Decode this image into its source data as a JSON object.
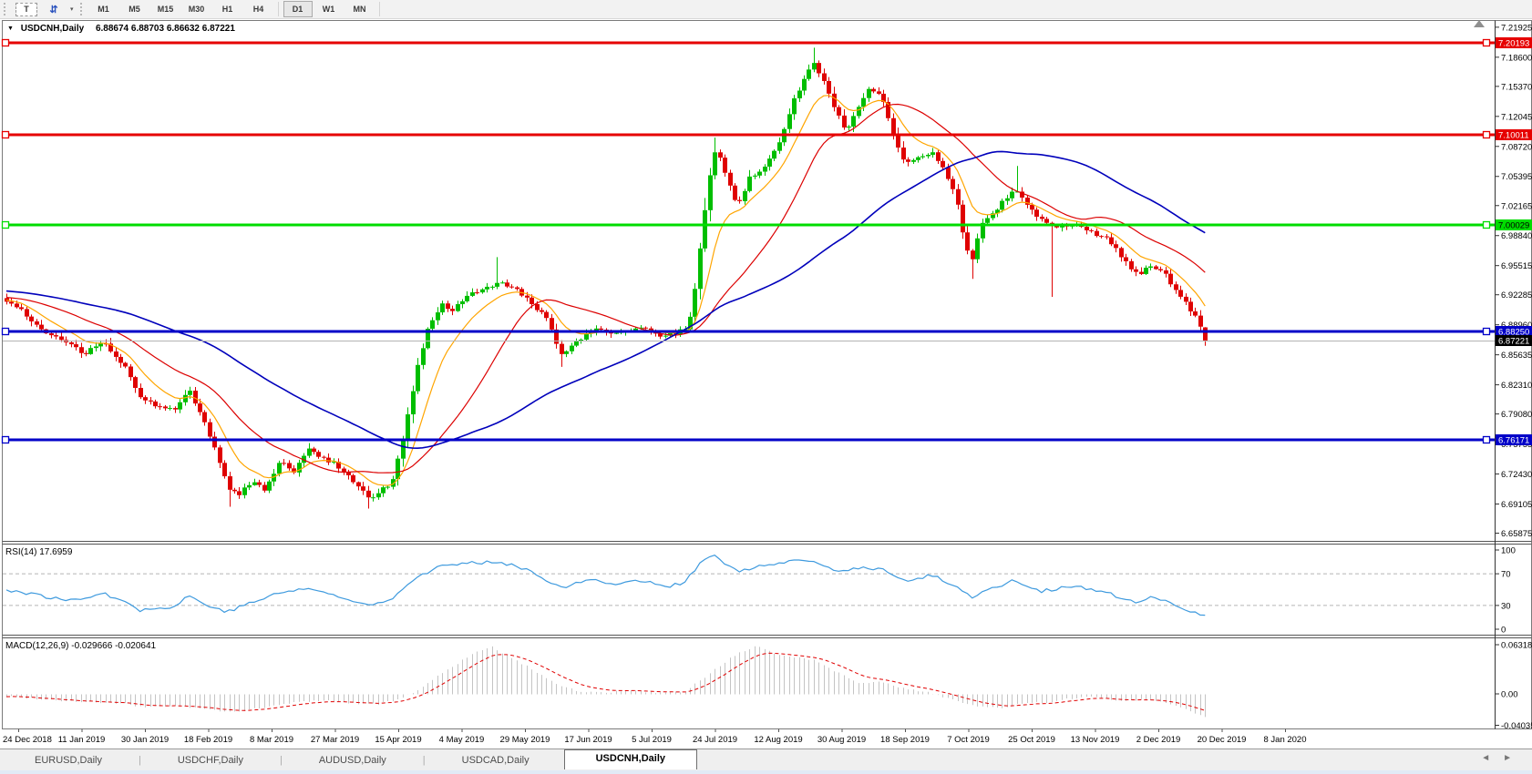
{
  "toolbar": {
    "text_tool_label": "T",
    "arrows_icon_glyph": "⇵",
    "dropdown_caret": "▾",
    "timeframes": [
      "M1",
      "M5",
      "M15",
      "M30",
      "H1",
      "H4",
      "D1",
      "W1",
      "MN"
    ],
    "active_timeframe": "D1"
  },
  "chart_title": {
    "dropdown_glyph": "▼",
    "symbol": "USDCNH,Daily",
    "ohlc": "6.88674 6.88703 6.86632 6.87221"
  },
  "indicator_labels": {
    "rsi": "RSI(14) 17.6959",
    "macd": "MACD(12,26,9) -0.029666 -0.020641"
  },
  "tabs": {
    "items": [
      "EURUSD,Daily",
      "USDCHF,Daily",
      "AUDUSD,Daily",
      "USDCAD,Daily",
      "USDCNH,Daily"
    ],
    "active": "USDCNH,Daily",
    "scroll_left": "◄",
    "scroll_right": "►"
  },
  "chart_data": {
    "type": "candlestick",
    "symbol": "USDCNH",
    "timeframe": "Daily",
    "num_candles": 243,
    "colors": {
      "bull": "#00be00",
      "bear": "#df0202",
      "ma_fast": "#ffa500",
      "ma_medium": "#dc0000",
      "ma_slow": "#0000bb",
      "rsi_line": "#3e9ade",
      "macd_hist": "#c4c4c4",
      "macd_signal": "#e00000",
      "current_price_line": "#b4b4b4"
    },
    "price_axis": {
      "ylim": [
        6.6502,
        7.2272
      ],
      "ticks": [
        "7.21925",
        "7.18600",
        "7.15370",
        "7.12045",
        "7.08720",
        "7.05395",
        "7.02165",
        "6.98840",
        "6.95515",
        "6.92285",
        "6.88960",
        "6.85635",
        "6.82310",
        "6.79080",
        "6.75755",
        "6.72430",
        "6.69105",
        "6.65875"
      ]
    },
    "x_labels": [
      "24 Dec 2018",
      "11 Jan 2019",
      "30 Jan 2019",
      "18 Feb 2019",
      "8 Mar 2019",
      "27 Mar 2019",
      "15 Apr 2019",
      "4 May 2019",
      "29 May 2019",
      "17 Jun 2019",
      "5 Jul 2019",
      "24 Jul 2019",
      "12 Aug 2019",
      "30 Aug 2019",
      "18 Sep 2019",
      "7 Oct 2019",
      "25 Oct 2019",
      "13 Nov 2019",
      "2 Dec 2019",
      "20 Dec 2019",
      "8 Jan 2020"
    ],
    "horizontal_lines": [
      {
        "price": 7.20193,
        "label": "7.20193",
        "color": "#e60000",
        "text_color": "#ffffff"
      },
      {
        "price": 7.10011,
        "label": "7.10011",
        "color": "#e60000",
        "text_color": "#ffffff"
      },
      {
        "price": 7.00029,
        "label": "7.00029",
        "color": "#00dc00",
        "text_color": "#000000"
      },
      {
        "price": 6.8825,
        "label": "6.88250",
        "color": "#0000c8",
        "text_color": "#ffffff"
      },
      {
        "price": 6.76171,
        "label": "6.76171",
        "color": "#0000c8",
        "text_color": "#ffffff"
      }
    ],
    "current_price": {
      "value": 6.87221,
      "label": "6.87221",
      "bg": "#000000",
      "text_color": "#ffffff"
    },
    "last_candle": {
      "o": 6.88674,
      "h": 6.88703,
      "l": 6.86632,
      "c": 6.87221
    },
    "price_keyframes": [
      [
        0,
        6.916
      ],
      [
        0.012,
        6.905
      ],
      [
        0.03,
        6.885
      ],
      [
        0.05,
        6.868
      ],
      [
        0.065,
        6.858
      ],
      [
        0.08,
        6.87
      ],
      [
        0.1,
        6.842
      ],
      [
        0.112,
        6.81
      ],
      [
        0.125,
        6.801
      ],
      [
        0.14,
        6.797
      ],
      [
        0.152,
        6.818
      ],
      [
        0.163,
        6.788
      ],
      [
        0.175,
        6.748
      ],
      [
        0.185,
        6.706
      ],
      [
        0.195,
        6.703
      ],
      [
        0.205,
        6.717
      ],
      [
        0.215,
        6.708
      ],
      [
        0.228,
        6.737
      ],
      [
        0.24,
        6.727
      ],
      [
        0.253,
        6.752
      ],
      [
        0.263,
        6.742
      ],
      [
        0.278,
        6.732
      ],
      [
        0.292,
        6.713
      ],
      [
        0.303,
        6.695
      ],
      [
        0.312,
        6.705
      ],
      [
        0.322,
        6.717
      ],
      [
        0.332,
        6.772
      ],
      [
        0.342,
        6.838
      ],
      [
        0.352,
        6.888
      ],
      [
        0.363,
        6.913
      ],
      [
        0.372,
        6.905
      ],
      [
        0.385,
        6.922
      ],
      [
        0.4,
        6.93
      ],
      [
        0.41,
        6.938
      ],
      [
        0.422,
        6.931
      ],
      [
        0.438,
        6.914
      ],
      [
        0.452,
        6.893
      ],
      [
        0.462,
        6.857
      ],
      [
        0.472,
        6.868
      ],
      [
        0.49,
        6.886
      ],
      [
        0.51,
        6.879
      ],
      [
        0.53,
        6.885
      ],
      [
        0.55,
        6.877
      ],
      [
        0.565,
        6.884
      ],
      [
        0.572,
        6.902
      ],
      [
        0.578,
        6.968
      ],
      [
        0.585,
        7.042
      ],
      [
        0.592,
        7.088
      ],
      [
        0.6,
        7.054
      ],
      [
        0.61,
        7.022
      ],
      [
        0.62,
        7.052
      ],
      [
        0.632,
        7.062
      ],
      [
        0.645,
        7.095
      ],
      [
        0.655,
        7.132
      ],
      [
        0.665,
        7.162
      ],
      [
        0.672,
        7.182
      ],
      [
        0.682,
        7.158
      ],
      [
        0.692,
        7.126
      ],
      [
        0.7,
        7.102
      ],
      [
        0.712,
        7.132
      ],
      [
        0.72,
        7.152
      ],
      [
        0.73,
        7.143
      ],
      [
        0.74,
        7.102
      ],
      [
        0.75,
        7.066
      ],
      [
        0.762,
        7.077
      ],
      [
        0.772,
        7.082
      ],
      [
        0.782,
        7.06
      ],
      [
        0.792,
        7.032
      ],
      [
        0.8,
        6.975
      ],
      [
        0.806,
        6.96
      ],
      [
        0.812,
        6.998
      ],
      [
        0.822,
        7.01
      ],
      [
        0.832,
        7.028
      ],
      [
        0.842,
        7.038
      ],
      [
        0.852,
        7.022
      ],
      [
        0.862,
        7.008
      ],
      [
        0.875,
        6.998
      ],
      [
        0.89,
        7.001
      ],
      [
        0.905,
        6.993
      ],
      [
        0.917,
        6.985
      ],
      [
        0.93,
        6.966
      ],
      [
        0.943,
        6.945
      ],
      [
        0.955,
        6.956
      ],
      [
        0.965,
        6.948
      ],
      [
        0.975,
        6.929
      ],
      [
        0.985,
        6.911
      ],
      [
        0.993,
        6.898
      ],
      [
        1.0,
        6.87221
      ]
    ],
    "wick_events": [
      {
        "f": 0.185,
        "low": 6.688
      },
      {
        "f": 0.303,
        "low": 6.686
      },
      {
        "f": 0.41,
        "high": 6.9645
      },
      {
        "f": 0.462,
        "low": 6.843
      },
      {
        "f": 0.592,
        "high": 7.097
      },
      {
        "f": 0.672,
        "high": 7.1965
      },
      {
        "f": 0.806,
        "low": 6.9405
      },
      {
        "f": 0.845,
        "high": 7.0655
      },
      {
        "f": 0.872,
        "low": 6.9205
      }
    ],
    "moving_averages": [
      {
        "name": "fast",
        "type": "ema",
        "period": 10
      },
      {
        "name": "medium",
        "type": "sma",
        "period": 25
      },
      {
        "name": "slow",
        "type": "sma",
        "period": 60
      }
    ],
    "rsi": {
      "ylim": [
        0,
        100
      ],
      "levels": [
        "100",
        "70",
        "30",
        "0"
      ],
      "level_values": [
        100,
        70,
        30,
        0
      ],
      "dashed_levels": [
        70,
        30
      ],
      "last_value": 17.6959,
      "keyframes": [
        [
          0,
          50
        ],
        [
          0.03,
          42
        ],
        [
          0.05,
          36
        ],
        [
          0.08,
          45
        ],
        [
          0.1,
          36
        ],
        [
          0.112,
          24
        ],
        [
          0.14,
          28
        ],
        [
          0.152,
          43
        ],
        [
          0.163,
          33
        ],
        [
          0.185,
          22
        ],
        [
          0.205,
          34
        ],
        [
          0.228,
          46
        ],
        [
          0.253,
          52
        ],
        [
          0.278,
          40
        ],
        [
          0.303,
          30
        ],
        [
          0.322,
          40
        ],
        [
          0.342,
          66
        ],
        [
          0.363,
          80
        ],
        [
          0.385,
          83
        ],
        [
          0.41,
          86
        ],
        [
          0.438,
          74
        ],
        [
          0.462,
          52
        ],
        [
          0.49,
          63
        ],
        [
          0.51,
          57
        ],
        [
          0.53,
          62
        ],
        [
          0.55,
          54
        ],
        [
          0.565,
          58
        ],
        [
          0.578,
          82
        ],
        [
          0.592,
          95
        ],
        [
          0.6,
          80
        ],
        [
          0.61,
          74
        ],
        [
          0.632,
          80
        ],
        [
          0.655,
          85
        ],
        [
          0.672,
          87
        ],
        [
          0.692,
          72
        ],
        [
          0.712,
          78
        ],
        [
          0.73,
          76
        ],
        [
          0.75,
          60
        ],
        [
          0.772,
          68
        ],
        [
          0.792,
          55
        ],
        [
          0.806,
          40
        ],
        [
          0.822,
          52
        ],
        [
          0.842,
          62
        ],
        [
          0.862,
          48
        ],
        [
          0.89,
          54
        ],
        [
          0.917,
          46
        ],
        [
          0.93,
          40
        ],
        [
          0.943,
          32
        ],
        [
          0.955,
          40
        ],
        [
          0.975,
          31
        ],
        [
          0.985,
          25
        ],
        [
          1.0,
          17.6959
        ]
      ]
    },
    "macd": {
      "axis_labels": [
        "0.063184",
        "0.00",
        "-0.040355"
      ],
      "axis_values": [
        0.063184,
        0.0,
        -0.040355
      ],
      "main_last": -0.029666,
      "signal_last": -0.020641,
      "keyframes": [
        [
          0,
          -0.003
        ],
        [
          0.05,
          -0.009
        ],
        [
          0.1,
          -0.013
        ],
        [
          0.112,
          -0.017
        ],
        [
          0.14,
          -0.015
        ],
        [
          0.163,
          -0.019
        ],
        [
          0.185,
          -0.0235
        ],
        [
          0.21,
          -0.019
        ],
        [
          0.24,
          -0.011
        ],
        [
          0.265,
          -0.008
        ],
        [
          0.29,
          -0.012
        ],
        [
          0.31,
          -0.013
        ],
        [
          0.33,
          -0.006
        ],
        [
          0.35,
          0.012
        ],
        [
          0.37,
          0.034
        ],
        [
          0.39,
          0.052
        ],
        [
          0.405,
          0.06
        ],
        [
          0.42,
          0.047
        ],
        [
          0.44,
          0.03
        ],
        [
          0.46,
          0.012
        ],
        [
          0.48,
          0.002
        ],
        [
          0.5,
          0.002
        ],
        [
          0.52,
          0.004
        ],
        [
          0.545,
          0.001
        ],
        [
          0.565,
          0.002
        ],
        [
          0.585,
          0.024
        ],
        [
          0.605,
          0.048
        ],
        [
          0.625,
          0.061
        ],
        [
          0.64,
          0.052
        ],
        [
          0.66,
          0.047
        ],
        [
          0.675,
          0.043
        ],
        [
          0.69,
          0.03
        ],
        [
          0.71,
          0.015
        ],
        [
          0.73,
          0.015
        ],
        [
          0.75,
          0.006
        ],
        [
          0.77,
          0.002
        ],
        [
          0.79,
          -0.008
        ],
        [
          0.81,
          -0.016
        ],
        [
          0.83,
          -0.019
        ],
        [
          0.85,
          -0.011
        ],
        [
          0.87,
          -0.012
        ],
        [
          0.89,
          -0.005
        ],
        [
          0.91,
          -0.004
        ],
        [
          0.93,
          -0.009
        ],
        [
          0.95,
          -0.007
        ],
        [
          0.97,
          -0.012
        ],
        [
          0.985,
          -0.021
        ],
        [
          1.0,
          -0.029666
        ]
      ]
    }
  }
}
